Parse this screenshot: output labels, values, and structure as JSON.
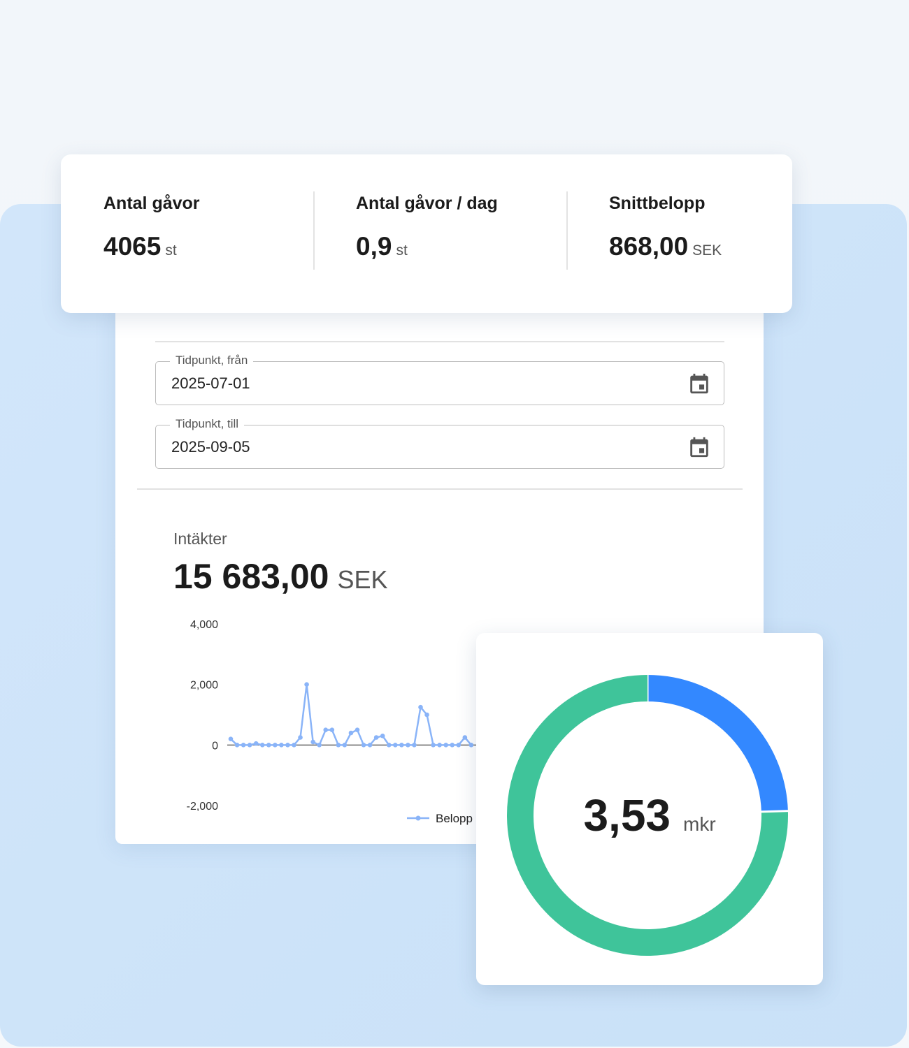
{
  "stats": [
    {
      "label": "Antal gåvor",
      "value": "4065",
      "unit": "st"
    },
    {
      "label": "Antal gåvor / dag",
      "value": "0,9",
      "unit": "st"
    },
    {
      "label": "Snittbelopp",
      "value": "868,00",
      "unit": "SEK"
    }
  ],
  "filters": [
    {
      "label": "Tidpunkt, från",
      "value": "2025-07-01"
    },
    {
      "label": "Tidpunkt, till",
      "value": "2025-09-05"
    }
  ],
  "revenue": {
    "label": "Intäkter",
    "value": "15 683,00",
    "unit": "SEK"
  },
  "chart_data": [
    {
      "type": "line",
      "ylim": [
        -2000,
        4000
      ],
      "yticks": [
        {
          "value": -2000,
          "label": "-2,000"
        },
        0,
        {
          "value": 2000,
          "label": "2,000"
        },
        {
          "value": 4000,
          "label": "4,000"
        }
      ],
      "zero_line": true,
      "series": [
        {
          "name": "Belopp",
          "color": "#8ab4f8",
          "values": [
            200,
            0,
            0,
            0,
            50,
            0,
            0,
            0,
            0,
            0,
            0,
            250,
            2000,
            100,
            0,
            500,
            500,
            0,
            0,
            400,
            500,
            0,
            0,
            250,
            300,
            0,
            0,
            0,
            0,
            0,
            1250,
            1000,
            0,
            0,
            0,
            0,
            0,
            250,
            0
          ]
        }
      ]
    },
    {
      "type": "pie",
      "values": [
        24.5,
        75.5
      ],
      "colors": [
        "#3388ff",
        "#3fc49a"
      ],
      "center_value": "3,53",
      "center_unit": "mkr"
    }
  ]
}
